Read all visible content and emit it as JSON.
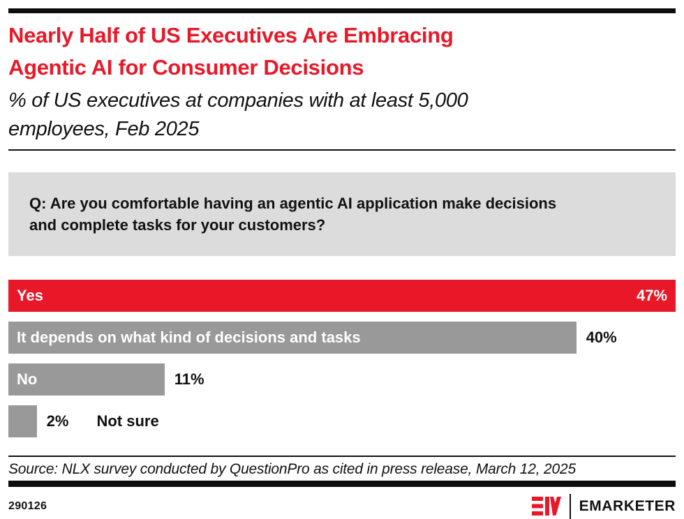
{
  "colors": {
    "accent_red": "#e81828",
    "bar_gray": "#999999",
    "question_bg": "#dcdcdc",
    "text_black": "#111111"
  },
  "header": {
    "title_line1": "Nearly Half of US Executives Are Embracing",
    "title_line2": "Agentic AI for Consumer Decisions",
    "subtitle_line1": "% of US executives at companies with at least 5,000",
    "subtitle_line2": "employees, Feb 2025"
  },
  "question": {
    "line1": "Q: Are you comfortable having an agentic AI application make decisions",
    "line2": "and complete tasks for your customers?"
  },
  "chart_data": {
    "type": "bar",
    "orientation": "horizontal",
    "title": "Nearly Half of US Executives Are Embracing Agentic AI for Consumer Decisions",
    "subtitle": "% of US executives at companies with at least 5,000 employees, Feb 2025",
    "categories": [
      "Yes",
      "It depends on what kind of decisions and tasks",
      "No",
      "Not sure"
    ],
    "values": [
      47,
      40,
      11,
      2
    ],
    "value_labels": [
      "47%",
      "40%",
      "11%",
      "2%"
    ],
    "colors": [
      "#e81828",
      "#999999",
      "#999999",
      "#999999"
    ],
    "xlim": [
      0,
      47
    ],
    "unit": "%",
    "grid": false,
    "legend": "none",
    "value_label_positions": [
      "inside-right",
      "outside-right",
      "outside-right",
      "outside-right"
    ],
    "category_label_positions": [
      "inside-left",
      "inside-left",
      "inside-left",
      "outside-right"
    ]
  },
  "footer": {
    "source": "Source: NLX survey conducted by QuestionPro as cited in press release, March 12, 2025",
    "chart_id": "290126",
    "logo_text": "EMARKETER"
  }
}
